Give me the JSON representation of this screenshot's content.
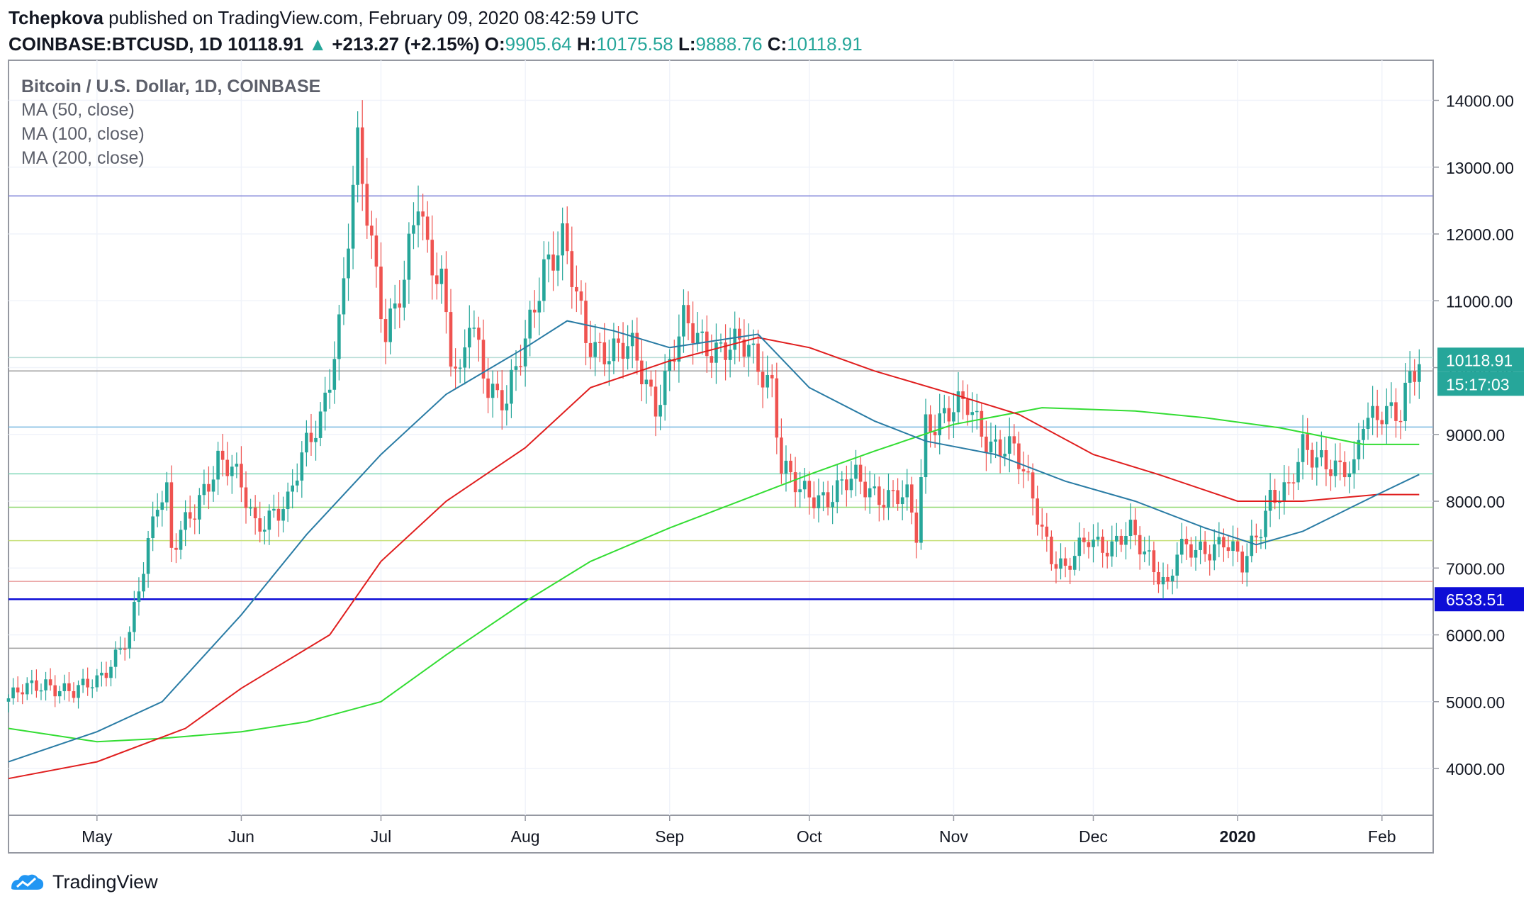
{
  "header": {
    "author": "Tchepkova",
    "published_text": "published on TradingView.com, February 09, 2020 08:42:59 UTC",
    "symbol": "COINBASE:BTCUSD, 1D",
    "last": "10118.91",
    "arrow": "▲",
    "change": "+213.27 (+2.15%)",
    "o_label": "O:",
    "o_value": "9905.64",
    "h_label": "H:",
    "h_value": "10175.58",
    "l_label": "L:",
    "l_value": "9888.76",
    "c_label": "C:",
    "c_value": "10118.91"
  },
  "footer": {
    "brand": "TradingView"
  },
  "colors": {
    "up": "#26a69a",
    "down": "#ef5350",
    "ma50": "#2a7ca5",
    "ma100": "#e01e1e",
    "ma200": "#33dd33",
    "price_tag": "#26a69a",
    "support_tag": "#0d0dd6"
  },
  "chart_data": {
    "type": "candlestick",
    "title": "Bitcoin / U.S. Dollar, 1D, COINBASE",
    "legend": [
      "MA (50, close)",
      "MA (100, close)",
      "MA (200, close)"
    ],
    "ylim": [
      3300,
      14600
    ],
    "y_ticks": [
      "14000.00",
      "13000.00",
      "12000.00",
      "11000.00",
      "10000.00",
      "9000.00",
      "8000.00",
      "7000.00",
      "6000.00",
      "5000.00",
      "4000.00"
    ],
    "y_tick_values": [
      14000,
      13000,
      12000,
      11000,
      10000,
      9000,
      8000,
      7000,
      6000,
      5000,
      4000
    ],
    "x_start": "2019-04-12",
    "x_end": "2020-02-12",
    "x_ticks": [
      {
        "label": "May",
        "date": "2019-05-01",
        "bold": false
      },
      {
        "label": "Jun",
        "date": "2019-06-01",
        "bold": false
      },
      {
        "label": "Jul",
        "date": "2019-07-01",
        "bold": false
      },
      {
        "label": "Aug",
        "date": "2019-08-01",
        "bold": false
      },
      {
        "label": "Sep",
        "date": "2019-09-01",
        "bold": false
      },
      {
        "label": "Oct",
        "date": "2019-10-01",
        "bold": false
      },
      {
        "label": "Nov",
        "date": "2019-11-01",
        "bold": false
      },
      {
        "label": "Dec",
        "date": "2019-12-01",
        "bold": false
      },
      {
        "label": "2020",
        "date": "2020-01-01",
        "bold": true
      },
      {
        "label": "Feb",
        "date": "2020-02-01",
        "bold": false
      }
    ],
    "last_price": 10118.91,
    "last_price_label": "10118.91",
    "countdown": "15:17:03",
    "support_price": 6533.51,
    "support_label": "6533.51",
    "horizontal_levels": [
      {
        "price": 12570,
        "color": "#7b7fd6"
      },
      {
        "price": 10150,
        "color": "#b8ddd6"
      },
      {
        "price": 9950,
        "color": "#9e9e9e"
      },
      {
        "price": 9110,
        "color": "#79b8e0"
      },
      {
        "price": 8410,
        "color": "#7fd8b8"
      },
      {
        "price": 7910,
        "color": "#8ed870"
      },
      {
        "price": 7410,
        "color": "#c8e07a"
      },
      {
        "price": 6800,
        "color": "#e89a9a"
      },
      {
        "price": 6533.51,
        "color": "#0d0dd6"
      },
      {
        "price": 5800,
        "color": "#9e9e9e"
      }
    ],
    "price_path": [
      [
        "2019-04-12",
        5050
      ],
      [
        "2019-04-20",
        5300
      ],
      [
        "2019-04-26",
        5100
      ],
      [
        "2019-05-01",
        5350
      ],
      [
        "2019-05-08",
        5950
      ],
      [
        "2019-05-11",
        7000
      ],
      [
        "2019-05-14",
        8100
      ],
      [
        "2019-05-16",
        8200
      ],
      [
        "2019-05-17",
        7300
      ],
      [
        "2019-05-22",
        7800
      ],
      [
        "2019-05-27",
        8700
      ],
      [
        "2019-05-30",
        8500
      ],
      [
        "2019-06-04",
        7600
      ],
      [
        "2019-06-08",
        7900
      ],
      [
        "2019-06-11",
        7950
      ],
      [
        "2019-06-15",
        8800
      ],
      [
        "2019-06-18",
        9300
      ],
      [
        "2019-06-22",
        10600
      ],
      [
        "2019-06-26",
        13200
      ],
      [
        "2019-06-29",
        11900
      ],
      [
        "2019-07-02",
        10600
      ],
      [
        "2019-07-06",
        11200
      ],
      [
        "2019-07-09",
        12500
      ],
      [
        "2019-07-11",
        11800
      ],
      [
        "2019-07-14",
        11400
      ],
      [
        "2019-07-16",
        10200
      ],
      [
        "2019-07-18",
        9700
      ],
      [
        "2019-07-20",
        10700
      ],
      [
        "2019-07-24",
        9800
      ],
      [
        "2019-07-28",
        9500
      ],
      [
        "2019-08-01",
        10300
      ],
      [
        "2019-08-05",
        11600
      ],
      [
        "2019-08-09",
        11900
      ],
      [
        "2019-08-14",
        10400
      ],
      [
        "2019-08-19",
        10300
      ],
      [
        "2019-08-24",
        10200
      ],
      [
        "2019-08-29",
        9500
      ],
      [
        "2019-09-04",
        10600
      ],
      [
        "2019-09-08",
        10400
      ],
      [
        "2019-09-13",
        10300
      ],
      [
        "2019-09-18",
        10250
      ],
      [
        "2019-09-23",
        9800
      ],
      [
        "2019-09-25",
        8500
      ],
      [
        "2019-09-29",
        8100
      ],
      [
        "2019-10-05",
        8100
      ],
      [
        "2019-10-11",
        8300
      ],
      [
        "2019-10-17",
        8100
      ],
      [
        "2019-10-22",
        8000
      ],
      [
        "2019-10-24",
        7500
      ],
      [
        "2019-10-26",
        9200
      ],
      [
        "2019-10-30",
        9300
      ],
      [
        "2019-11-04",
        9400
      ],
      [
        "2019-11-09",
        8900
      ],
      [
        "2019-11-14",
        8700
      ],
      [
        "2019-11-18",
        8100
      ],
      [
        "2019-11-22",
        7200
      ],
      [
        "2019-11-25",
        6900
      ],
      [
        "2019-11-30",
        7500
      ],
      [
        "2019-12-05",
        7300
      ],
      [
        "2019-12-09",
        7500
      ],
      [
        "2019-12-13",
        7200
      ],
      [
        "2019-12-17",
        6700
      ],
      [
        "2019-12-19",
        7200
      ],
      [
        "2019-12-24",
        7300
      ],
      [
        "2019-12-29",
        7400
      ],
      [
        "2020-01-02",
        7000
      ],
      [
        "2020-01-06",
        7700
      ],
      [
        "2020-01-08",
        8100
      ],
      [
        "2020-01-12",
        8100
      ],
      [
        "2020-01-15",
        8800
      ],
      [
        "2020-01-19",
        8700
      ],
      [
        "2020-01-23",
        8400
      ],
      [
        "2020-01-26",
        8400
      ],
      [
        "2020-01-28",
        9300
      ],
      [
        "2020-02-01",
        9400
      ],
      [
        "2020-02-05",
        9200
      ],
      [
        "2020-02-07",
        9800
      ],
      [
        "2020-02-09",
        10118.91
      ]
    ],
    "ma50": [
      [
        "2019-04-12",
        4100
      ],
      [
        "2019-05-01",
        4550
      ],
      [
        "2019-05-15",
        5000
      ],
      [
        "2019-06-01",
        6300
      ],
      [
        "2019-06-15",
        7500
      ],
      [
        "2019-07-01",
        8700
      ],
      [
        "2019-07-15",
        9600
      ],
      [
        "2019-08-01",
        10300
      ],
      [
        "2019-08-10",
        10700
      ],
      [
        "2019-08-20",
        10550
      ],
      [
        "2019-09-01",
        10300
      ],
      [
        "2019-09-20",
        10500
      ],
      [
        "2019-10-01",
        9700
      ],
      [
        "2019-10-15",
        9200
      ],
      [
        "2019-10-26",
        8900
      ],
      [
        "2019-11-10",
        8700
      ],
      [
        "2019-11-25",
        8300
      ],
      [
        "2019-12-10",
        8000
      ],
      [
        "2019-12-25",
        7600
      ],
      [
        "2020-01-05",
        7350
      ],
      [
        "2020-01-15",
        7550
      ],
      [
        "2020-01-31",
        8100
      ],
      [
        "2020-02-09",
        8400
      ]
    ],
    "ma100": [
      [
        "2019-04-12",
        3850
      ],
      [
        "2019-05-01",
        4100
      ],
      [
        "2019-05-20",
        4600
      ],
      [
        "2019-06-01",
        5200
      ],
      [
        "2019-06-20",
        6000
      ],
      [
        "2019-07-01",
        7100
      ],
      [
        "2019-07-15",
        8000
      ],
      [
        "2019-08-01",
        8800
      ],
      [
        "2019-08-15",
        9700
      ],
      [
        "2019-09-01",
        10100
      ],
      [
        "2019-09-20",
        10450
      ],
      [
        "2019-10-01",
        10300
      ],
      [
        "2019-10-15",
        9950
      ],
      [
        "2019-11-01",
        9600
      ],
      [
        "2019-11-15",
        9300
      ],
      [
        "2019-12-01",
        8700
      ],
      [
        "2019-12-15",
        8400
      ],
      [
        "2020-01-01",
        8000
      ],
      [
        "2020-01-15",
        8000
      ],
      [
        "2020-01-31",
        8100
      ],
      [
        "2020-02-09",
        8100
      ]
    ],
    "ma200": [
      [
        "2019-04-12",
        4600
      ],
      [
        "2019-05-01",
        4400
      ],
      [
        "2019-05-15",
        4450
      ],
      [
        "2019-06-01",
        4550
      ],
      [
        "2019-06-15",
        4700
      ],
      [
        "2019-07-01",
        5000
      ],
      [
        "2019-07-15",
        5700
      ],
      [
        "2019-08-01",
        6500
      ],
      [
        "2019-08-15",
        7100
      ],
      [
        "2019-09-01",
        7600
      ],
      [
        "2019-10-01",
        8400
      ],
      [
        "2019-10-15",
        8750
      ],
      [
        "2019-11-01",
        9150
      ],
      [
        "2019-11-20",
        9400
      ],
      [
        "2019-12-10",
        9350
      ],
      [
        "2019-12-25",
        9250
      ],
      [
        "2020-01-10",
        9100
      ],
      [
        "2020-01-28",
        8850
      ],
      [
        "2020-02-09",
        8850
      ]
    ]
  }
}
